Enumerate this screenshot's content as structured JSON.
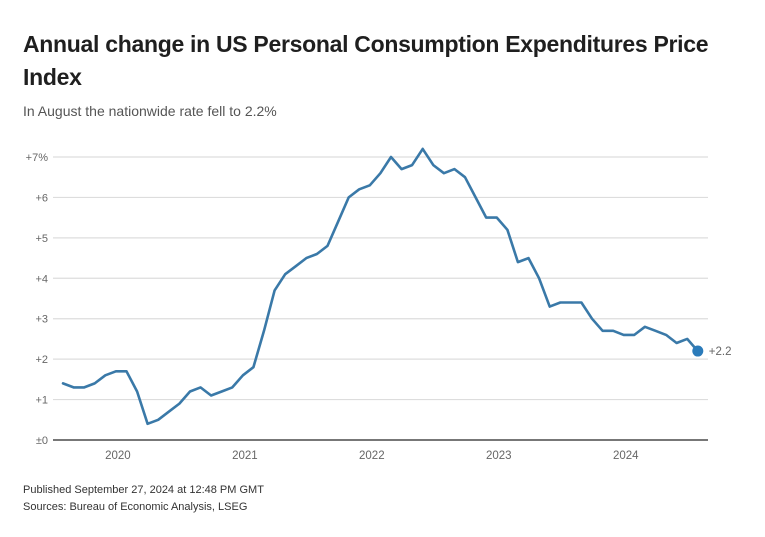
{
  "header": {
    "title": "Annual change in US Personal Consumption Expenditures Price Index",
    "subtitle": "In August the nationwide rate fell to 2.2%"
  },
  "footer": {
    "published": "Published September 27, 2024 at 12:48 PM GMT",
    "sources": "Sources: Bureau of Economic Analysis, LSEG"
  },
  "colors": {
    "line": "#3a79a8",
    "endpoint": "#2b7bba",
    "grid": "#dddddd",
    "baseline": "#777777",
    "tick_text": "#666666"
  },
  "chart_data": {
    "type": "line",
    "title": "Annual change in US Personal Consumption Expenditures Price Index",
    "subtitle": "In August the nationwide rate fell to 2.2%",
    "xlabel": "",
    "ylabel": "",
    "ylim": [
      0,
      7
    ],
    "yticks": [
      0,
      1,
      2,
      3,
      4,
      5,
      6,
      7
    ],
    "ytick_labels": [
      "±0",
      "+1",
      "+2",
      "+3",
      "+4",
      "+5",
      "+6",
      "+7%"
    ],
    "xtick_labels": [
      "2020",
      "2021",
      "2022",
      "2023",
      "2024"
    ],
    "grid": true,
    "legend": "none",
    "start": "2019-08",
    "frequency": "monthly",
    "series": [
      {
        "name": "PCE Price Index, annual % change",
        "values": [
          1.4,
          1.3,
          1.3,
          1.4,
          1.6,
          1.7,
          1.7,
          1.2,
          0.4,
          0.5,
          0.7,
          0.9,
          1.2,
          1.3,
          1.1,
          1.2,
          1.3,
          1.6,
          1.8,
          2.7,
          3.7,
          4.1,
          4.3,
          4.5,
          4.6,
          4.8,
          5.4,
          6.0,
          6.2,
          6.3,
          6.6,
          7.0,
          6.7,
          6.8,
          7.2,
          6.8,
          6.6,
          6.7,
          6.5,
          6.0,
          5.5,
          5.5,
          5.2,
          4.4,
          4.5,
          4.0,
          3.3,
          3.4,
          3.4,
          3.4,
          3.0,
          2.7,
          2.7,
          2.6,
          2.6,
          2.8,
          2.7,
          2.6,
          2.4,
          2.5,
          2.2
        ]
      }
    ],
    "annotations": [
      {
        "label": "+2.2",
        "at": "2024-08"
      }
    ]
  }
}
